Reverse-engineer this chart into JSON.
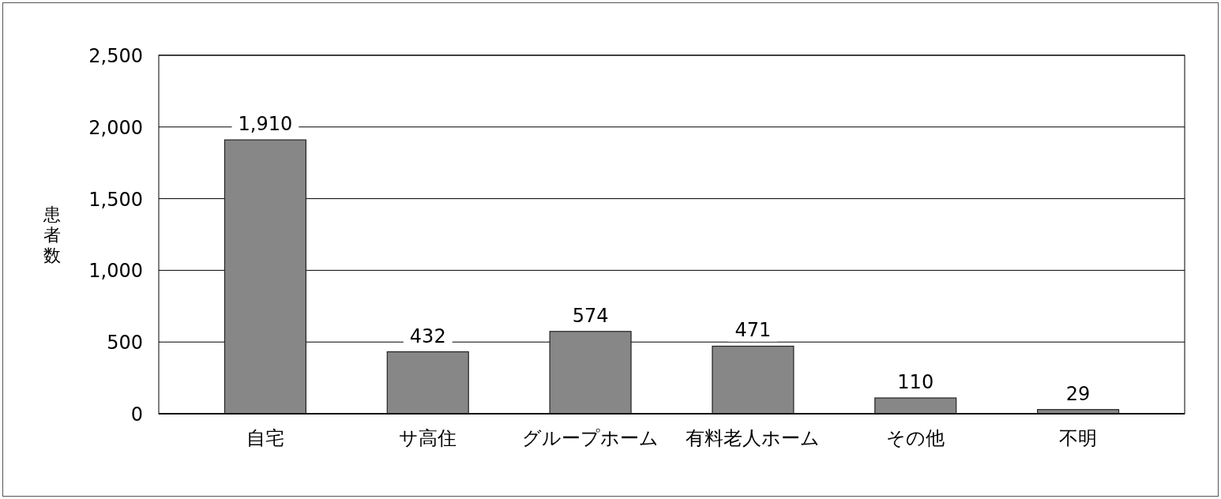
{
  "chart_data": {
    "type": "bar",
    "ylabel": "患者数",
    "categories": [
      "自宅",
      "サ高住",
      "グループホーム",
      "有料老人ホーム",
      "その他",
      "不明"
    ],
    "values": [
      1910,
      432,
      574,
      471,
      110,
      29
    ],
    "value_labels": [
      "1,910",
      "432",
      "574",
      "471",
      "110",
      "29"
    ],
    "color": "#878787",
    "ylim": [
      0,
      2500
    ],
    "yticks": [
      0,
      {
        "value": 500,
        "label": "500"
      },
      {
        "value": 1000,
        "label": "1,000"
      },
      {
        "value": 1500,
        "label": "1,500"
      },
      {
        "value": 2000,
        "label": "2,000"
      },
      {
        "value": 2500,
        "label": "2,500"
      }
    ],
    "grid": "y"
  }
}
